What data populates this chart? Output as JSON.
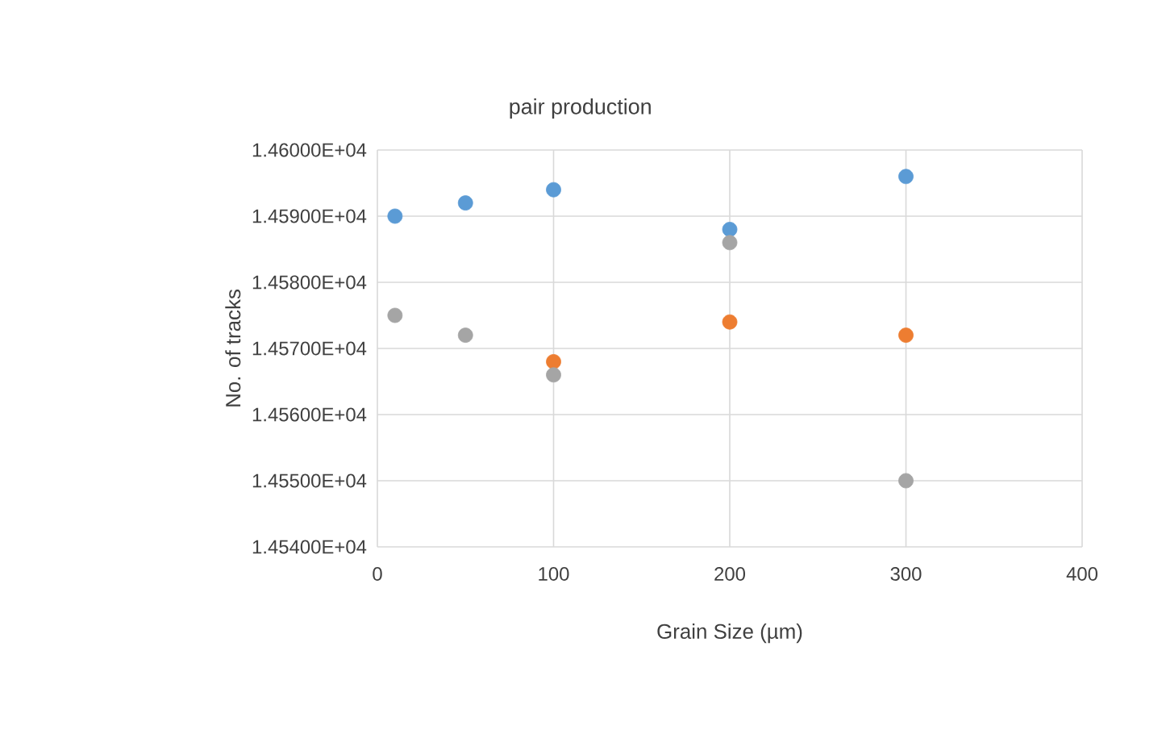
{
  "chart_data": {
    "type": "scatter",
    "title": "pair production",
    "xlabel": "Grain Size (µm)",
    "ylabel": "No. of tracks",
    "x": [
      10,
      50,
      100,
      200,
      300
    ],
    "series": [
      {
        "color": "#5b9bd5",
        "values": [
          14590,
          14592,
          14594,
          14588,
          14596
        ]
      },
      {
        "color": "#ed7d31",
        "values": [
          null,
          null,
          14568,
          14574,
          14572
        ]
      },
      {
        "color": "#a5a5a5",
        "values": [
          14575,
          14572,
          14566,
          14586,
          14550
        ]
      }
    ],
    "xlim": [
      0,
      400
    ],
    "xticks": [
      0,
      100,
      200,
      300,
      400
    ],
    "ylim": [
      14540,
      14600
    ],
    "yticks": [
      {
        "value": 14540,
        "label": "1.45400E+04"
      },
      {
        "value": 14550,
        "label": "1.45500E+04"
      },
      {
        "value": 14560,
        "label": "1.45600E+04"
      },
      {
        "value": 14570,
        "label": "1.45700E+04"
      },
      {
        "value": 14580,
        "label": "1.45800E+04"
      },
      {
        "value": 14590,
        "label": "1.45900E+04"
      },
      {
        "value": 14600,
        "label": "1.46000E+04"
      }
    ],
    "grid": true,
    "marker": "circle"
  }
}
